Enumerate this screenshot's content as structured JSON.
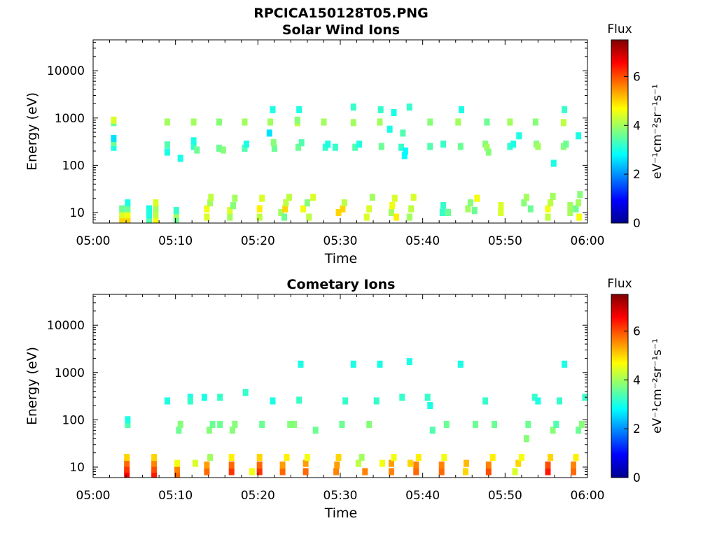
{
  "figure_title": "RPCICA150128T05.PNG",
  "chart_data": [
    {
      "type": "heatmap",
      "title": "Solar Wind Ions",
      "xlabel": "Time",
      "ylabel": "Energy (eV)",
      "xticks": [
        "05:00",
        "05:10",
        "05:20",
        "05:30",
        "05:40",
        "05:50",
        "06:00"
      ],
      "xlim_minutes": [
        0,
        60
      ],
      "yscale": "log",
      "ylim": [
        6,
        45000
      ],
      "yticks": [
        10,
        100,
        1000,
        10000
      ],
      "colorbar": {
        "title": "Flux",
        "unit": "eV⁻¹cm⁻²sr⁻¹s⁻¹",
        "range": [
          0,
          7.5
        ],
        "ticks": [
          0,
          2,
          4,
          6
        ]
      },
      "cells": [
        [
          2.5,
          800,
          3.6
        ],
        [
          2.5,
          900,
          4.4
        ],
        [
          2.5,
          240,
          3.0
        ],
        [
          2.5,
          300,
          3.6
        ],
        [
          2.5,
          370,
          2.6
        ],
        [
          3.5,
          7,
          5.0
        ],
        [
          3.5,
          9,
          4.4
        ],
        [
          3.5,
          12,
          3.6
        ],
        [
          4.2,
          7,
          5.0
        ],
        [
          4.2,
          9,
          4.6
        ],
        [
          4.2,
          12,
          3.6
        ],
        [
          4.2,
          16,
          3.0
        ],
        [
          6.8,
          7,
          3.4
        ],
        [
          6.8,
          9,
          3.0
        ],
        [
          6.8,
          12,
          3.0
        ],
        [
          7.6,
          7,
          4.6
        ],
        [
          7.6,
          9,
          4.2
        ],
        [
          7.6,
          12,
          4.0
        ],
        [
          7.6,
          16,
          4.4
        ],
        [
          9.0,
          820,
          4.0
        ],
        [
          9.0,
          190,
          3.0
        ],
        [
          9.0,
          270,
          3.4
        ],
        [
          10.1,
          7,
          3.6
        ],
        [
          10.1,
          9,
          4.0
        ],
        [
          10.1,
          11,
          3.2
        ],
        [
          10.6,
          140,
          3.0
        ],
        [
          12.2,
          820,
          4.0
        ],
        [
          12.2,
          250,
          3.2
        ],
        [
          12.2,
          330,
          3.0
        ],
        [
          12.6,
          210,
          3.6
        ],
        [
          13.8,
          8,
          4.4
        ],
        [
          13.8,
          12,
          4.6
        ],
        [
          14.2,
          16,
          4.0
        ],
        [
          14.3,
          21,
          4.2
        ],
        [
          15.3,
          820,
          3.8
        ],
        [
          15.3,
          230,
          3.6
        ],
        [
          15.8,
          210,
          3.8
        ],
        [
          16.6,
          8,
          4.0
        ],
        [
          16.6,
          11,
          4.4
        ],
        [
          17.0,
          14,
          3.8
        ],
        [
          17.2,
          20,
          4.0
        ],
        [
          18.4,
          820,
          4.0
        ],
        [
          18.4,
          230,
          3.4
        ],
        [
          18.6,
          280,
          3.0
        ],
        [
          20.2,
          8,
          4.2
        ],
        [
          20.2,
          12,
          4.8
        ],
        [
          20.5,
          20,
          4.4
        ],
        [
          21.5,
          820,
          4.0
        ],
        [
          21.8,
          1500,
          3.0
        ],
        [
          22.0,
          230,
          3.6
        ],
        [
          21.9,
          300,
          3.8
        ],
        [
          21.4,
          480,
          2.6
        ],
        [
          22.8,
          10,
          4.0
        ],
        [
          23.2,
          8,
          3.6
        ],
        [
          23.3,
          12,
          5.0
        ],
        [
          23.4,
          16,
          4.2
        ],
        [
          23.8,
          21,
          4.2
        ],
        [
          24.8,
          800,
          4.2
        ],
        [
          24.8,
          900,
          3.8
        ],
        [
          25.0,
          1500,
          3.0
        ],
        [
          24.9,
          240,
          3.6
        ],
        [
          25.3,
          300,
          3.4
        ],
        [
          25.5,
          12,
          4.6
        ],
        [
          26.2,
          8,
          4.2
        ],
        [
          26.0,
          16,
          3.8
        ],
        [
          26.7,
          21,
          4.4
        ],
        [
          28.0,
          820,
          4.0
        ],
        [
          28.2,
          240,
          3.2
        ],
        [
          28.5,
          280,
          3.0
        ],
        [
          29.4,
          240,
          3.2
        ],
        [
          29.8,
          10,
          5.0
        ],
        [
          30.3,
          12,
          5.0
        ],
        [
          30.5,
          16,
          4.2
        ],
        [
          31.6,
          800,
          4.0
        ],
        [
          31.6,
          1700,
          3.2
        ],
        [
          31.8,
          240,
          3.4
        ],
        [
          32.3,
          280,
          3.0
        ],
        [
          33.2,
          8,
          4.4
        ],
        [
          33.5,
          12,
          4.4
        ],
        [
          33.9,
          21,
          4.0
        ],
        [
          34.8,
          820,
          4.0
        ],
        [
          34.9,
          1500,
          3.2
        ],
        [
          35.0,
          250,
          3.6
        ],
        [
          36.2,
          10,
          4.0
        ],
        [
          36.3,
          14,
          4.6
        ],
        [
          36.8,
          8,
          4.8
        ],
        [
          36.6,
          20,
          4.4
        ],
        [
          36.0,
          580,
          3.0
        ],
        [
          36.5,
          1300,
          3.0
        ],
        [
          37.6,
          480,
          3.4
        ],
        [
          37.4,
          240,
          3.2
        ],
        [
          37.8,
          160,
          2.8
        ],
        [
          37.9,
          200,
          2.8
        ],
        [
          38.4,
          8,
          4.0
        ],
        [
          38.6,
          12,
          4.2
        ],
        [
          38.9,
          21,
          4.4
        ],
        [
          38.4,
          1700,
          3.2
        ],
        [
          40.9,
          820,
          3.8
        ],
        [
          40.9,
          250,
          3.4
        ],
        [
          42.5,
          280,
          3.2
        ],
        [
          42.4,
          10,
          3.2
        ],
        [
          42.5,
          14,
          3.2
        ],
        [
          43.1,
          10,
          3.6
        ],
        [
          44.3,
          820,
          4.0
        ],
        [
          44.7,
          1500,
          3.0
        ],
        [
          44.6,
          250,
          3.6
        ],
        [
          45.5,
          12,
          4.0
        ],
        [
          45.8,
          16,
          3.8
        ],
        [
          46.3,
          11,
          3.6
        ],
        [
          46.6,
          20,
          4.6
        ],
        [
          47.8,
          820,
          3.6
        ],
        [
          47.6,
          280,
          3.8
        ],
        [
          47.8,
          240,
          4.0
        ],
        [
          48.0,
          190,
          3.8
        ],
        [
          49.5,
          10,
          4.4
        ],
        [
          49.5,
          14,
          4.4
        ],
        [
          50.6,
          820,
          4.0
        ],
        [
          50.6,
          250,
          3.2
        ],
        [
          51.0,
          280,
          3.0
        ],
        [
          51.7,
          420,
          3.0
        ],
        [
          52.3,
          16,
          3.8
        ],
        [
          52.6,
          21,
          4.0
        ],
        [
          53.1,
          12,
          3.6
        ],
        [
          53.7,
          820,
          3.8
        ],
        [
          53.8,
          280,
          3.8
        ],
        [
          54.0,
          250,
          4.0
        ],
        [
          55.2,
          8,
          4.2
        ],
        [
          55.2,
          12,
          4.6
        ],
        [
          55.5,
          16,
          4.2
        ],
        [
          55.8,
          22,
          4.0
        ],
        [
          55.9,
          110,
          3.0
        ],
        [
          57.1,
          800,
          4.2
        ],
        [
          57.2,
          1500,
          3.2
        ],
        [
          57.1,
          250,
          3.8
        ],
        [
          57.4,
          280,
          3.6
        ],
        [
          58.9,
          420,
          3.0
        ],
        [
          57.9,
          10,
          4.0
        ],
        [
          57.9,
          14,
          4.0
        ],
        [
          58.6,
          12,
          3.6
        ],
        [
          58.9,
          16,
          4.0
        ],
        [
          59.1,
          24,
          3.8
        ],
        [
          59.0,
          8,
          4.6
        ]
      ]
    },
    {
      "type": "heatmap",
      "title": "Cometary Ions",
      "xlabel": "Time",
      "ylabel": "Energy (eV)",
      "xticks": [
        "05:00",
        "05:10",
        "05:20",
        "05:30",
        "05:40",
        "05:50",
        "06:00"
      ],
      "xlim_minutes": [
        0,
        60
      ],
      "yscale": "log",
      "ylim": [
        6,
        45000
      ],
      "yticks": [
        10,
        100,
        1000,
        10000
      ],
      "colorbar": {
        "title": "Flux",
        "unit": "eV⁻¹cm⁻²sr⁻¹s⁻¹",
        "range": [
          0,
          7.5
        ],
        "ticks": [
          0,
          2,
          4,
          6
        ]
      },
      "cells": [
        [
          4.1,
          7,
          6.6
        ],
        [
          4.1,
          9,
          6.2
        ],
        [
          4.1,
          12,
          5.8
        ],
        [
          4.1,
          16,
          5.0
        ],
        [
          4.2,
          80,
          3.4
        ],
        [
          4.2,
          100,
          3.0
        ],
        [
          7.4,
          7,
          6.4
        ],
        [
          7.4,
          9,
          6.0
        ],
        [
          7.4,
          12,
          5.6
        ],
        [
          7.4,
          16,
          5.0
        ],
        [
          9.0,
          250,
          3.0
        ],
        [
          10.2,
          7,
          5.8
        ],
        [
          10.2,
          9,
          5.6
        ],
        [
          10.2,
          12,
          4.6
        ],
        [
          10.4,
          60,
          3.6
        ],
        [
          10.6,
          80,
          3.8
        ],
        [
          11.8,
          300,
          3.0
        ],
        [
          11.8,
          250,
          3.2
        ],
        [
          12.4,
          12,
          4.4
        ],
        [
          13.5,
          300,
          3.0
        ],
        [
          13.8,
          8,
          5.8
        ],
        [
          13.8,
          11,
          5.4
        ],
        [
          14.2,
          16,
          4.0
        ],
        [
          14.1,
          60,
          3.8
        ],
        [
          14.5,
          80,
          3.6
        ],
        [
          15.4,
          300,
          3.2
        ],
        [
          15.4,
          80,
          3.6
        ],
        [
          16.8,
          8,
          6.2
        ],
        [
          16.8,
          11,
          5.8
        ],
        [
          16.8,
          16,
          4.8
        ],
        [
          16.9,
          60,
          3.8
        ],
        [
          17.2,
          80,
          3.8
        ],
        [
          18.5,
          380,
          3.2
        ],
        [
          19.3,
          8,
          4.6
        ],
        [
          20.2,
          8,
          6.2
        ],
        [
          20.2,
          11,
          5.8
        ],
        [
          20.2,
          16,
          5.0
        ],
        [
          20.5,
          80,
          3.6
        ],
        [
          21.8,
          250,
          3.0
        ],
        [
          23.0,
          8,
          5.8
        ],
        [
          23.0,
          11,
          5.4
        ],
        [
          23.5,
          16,
          4.8
        ],
        [
          23.9,
          80,
          3.8
        ],
        [
          24.4,
          80,
          3.8
        ],
        [
          25.2,
          1500,
          3.0
        ],
        [
          25.0,
          260,
          3.2
        ],
        [
          25.8,
          8,
          5.8
        ],
        [
          25.8,
          12,
          5.4
        ],
        [
          26.0,
          16,
          4.6
        ],
        [
          27.0,
          60,
          3.6
        ],
        [
          29.5,
          8,
          5.6
        ],
        [
          29.6,
          11,
          5.4
        ],
        [
          29.8,
          16,
          5.0
        ],
        [
          30.2,
          80,
          3.6
        ],
        [
          30.6,
          250,
          3.2
        ],
        [
          31.6,
          1500,
          3.0
        ],
        [
          32.2,
          12,
          4.2
        ],
        [
          32.6,
          16,
          4.0
        ],
        [
          33.0,
          8,
          5.6
        ],
        [
          33.5,
          80,
          3.8
        ],
        [
          34.4,
          250,
          3.2
        ],
        [
          34.8,
          1500,
          3.0
        ],
        [
          35.1,
          12,
          4.6
        ],
        [
          36.2,
          8,
          5.6
        ],
        [
          36.2,
          12,
          5.4
        ],
        [
          36.5,
          16,
          4.6
        ],
        [
          37.5,
          300,
          3.2
        ],
        [
          38.4,
          1700,
          3.0
        ],
        [
          38.5,
          12,
          5.0
        ],
        [
          39.2,
          8,
          5.8
        ],
        [
          39.2,
          11,
          5.6
        ],
        [
          39.5,
          16,
          4.8
        ],
        [
          40.6,
          300,
          3.2
        ],
        [
          40.9,
          200,
          3.0
        ],
        [
          41.2,
          60,
          3.4
        ],
        [
          42.3,
          8,
          5.8
        ],
        [
          42.3,
          11,
          5.6
        ],
        [
          42.6,
          16,
          4.6
        ],
        [
          42.9,
          80,
          3.6
        ],
        [
          44.6,
          1500,
          3.0
        ],
        [
          45.2,
          8,
          5.0
        ],
        [
          45.3,
          12,
          5.2
        ],
        [
          46.4,
          80,
          3.6
        ],
        [
          47.6,
          250,
          3.2
        ],
        [
          48.0,
          8,
          6.0
        ],
        [
          48.0,
          11,
          5.6
        ],
        [
          48.5,
          16,
          4.8
        ],
        [
          48.7,
          80,
          3.6
        ],
        [
          51.2,
          8,
          4.4
        ],
        [
          51.6,
          12,
          5.0
        ],
        [
          52.0,
          16,
          4.6
        ],
        [
          52.6,
          40,
          3.8
        ],
        [
          52.8,
          80,
          3.6
        ],
        [
          53.6,
          300,
          3.2
        ],
        [
          54.0,
          250,
          3.0
        ],
        [
          55.2,
          8,
          6.4
        ],
        [
          55.2,
          11,
          6.0
        ],
        [
          55.5,
          16,
          5.0
        ],
        [
          55.8,
          60,
          3.8
        ],
        [
          56.2,
          80,
          3.4
        ],
        [
          56.6,
          250,
          3.2
        ],
        [
          57.2,
          1500,
          3.0
        ],
        [
          58.3,
          8,
          5.8
        ],
        [
          58.3,
          11,
          5.6
        ],
        [
          58.6,
          16,
          4.8
        ],
        [
          58.9,
          60,
          3.6
        ],
        [
          59.3,
          80,
          3.8
        ],
        [
          59.7,
          300,
          3.2
        ]
      ]
    }
  ]
}
